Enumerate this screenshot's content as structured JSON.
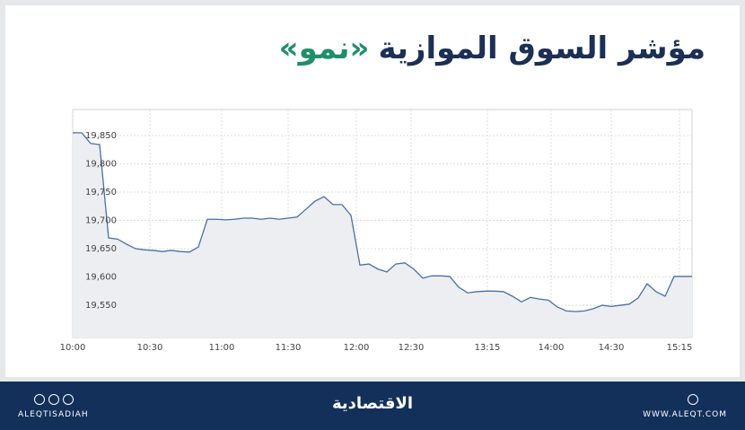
{
  "chart_data": {
    "type": "line",
    "title": "مؤشر السوق الموازية",
    "title_highlight": "«نمو»",
    "values": [
      19855,
      19855,
      19836,
      19834,
      19669,
      19667,
      19658,
      19650,
      19648,
      19647,
      19645,
      19647,
      19645,
      19644,
      19653,
      19702,
      19702,
      19701,
      19702,
      19704,
      19704,
      19702,
      19704,
      19702,
      19704,
      19706,
      19720,
      19734,
      19742,
      19728,
      19728,
      19709,
      19621,
      19623,
      19614,
      19609,
      19623,
      19625,
      19614,
      19598,
      19602,
      19602,
      19601,
      19582,
      19572,
      19574,
      19575,
      19575,
      19574,
      19566,
      19556,
      19564,
      19561,
      19559,
      19547,
      19540,
      19539,
      19540,
      19544,
      19550,
      19548,
      19550,
      19552,
      19563,
      19588,
      19574,
      19566,
      19601,
      19601,
      19601
    ],
    "color": "#4a6fa5",
    "fill": "#eceef2",
    "xlim": [
      0,
      69
    ],
    "xticks": [
      {
        "value": 0,
        "label": "10:00"
      },
      {
        "value": 8.6,
        "label": "10:30"
      },
      {
        "value": 16.6,
        "label": "11:00"
      },
      {
        "value": 24,
        "label": "11:30"
      },
      {
        "value": 31.6,
        "label": "12:00"
      },
      {
        "value": 37.7,
        "label": "12:30"
      },
      {
        "value": 46.2,
        "label": "13:15"
      },
      {
        "value": 53.3,
        "label": "14:00"
      },
      {
        "value": 60,
        "label": "14:30"
      },
      {
        "value": 67.6,
        "label": "15:15"
      }
    ],
    "ylim": [
      19493,
      19896
    ],
    "yticks": [
      {
        "value": 19550,
        "label": "19,550"
      },
      {
        "value": 19600,
        "label": "19,600"
      },
      {
        "value": 19650,
        "label": "19,650"
      },
      {
        "value": 19700,
        "label": "19,700"
      },
      {
        "value": 19750,
        "label": "19,750"
      },
      {
        "value": 19800,
        "label": "19,800"
      },
      {
        "value": 19850,
        "label": "19,850"
      }
    ],
    "grid": true
  },
  "footer": {
    "social": "ALEQTISADIAH",
    "brand": "الاقتصادية",
    "website": "WWW.ALEQT.COM"
  }
}
